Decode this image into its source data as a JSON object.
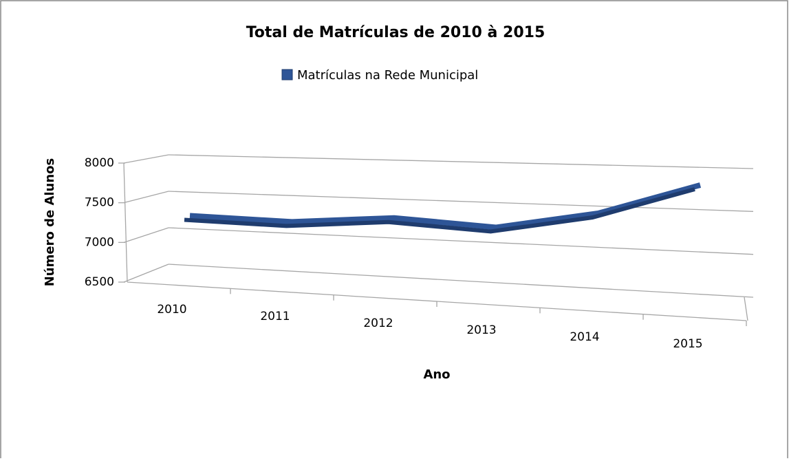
{
  "chart_data": {
    "type": "line",
    "title": "Total de Matrículas de 2010 à 2015",
    "x_label": "Ano",
    "y_label": "Número de Alunos",
    "categories": [
      "2010",
      "2011",
      "2012",
      "2013",
      "2014",
      "2015"
    ],
    "series": [
      {
        "name": "Matrículas na Rede Municipal",
        "color": "#2e5597",
        "values": [
          7200,
          7180,
          7280,
          7220,
          7420,
          7750
        ]
      }
    ],
    "ylim": [
      6500,
      8000
    ],
    "yticks": [
      6500,
      7000,
      7500,
      8000
    ],
    "grid": true,
    "legend": "top"
  }
}
